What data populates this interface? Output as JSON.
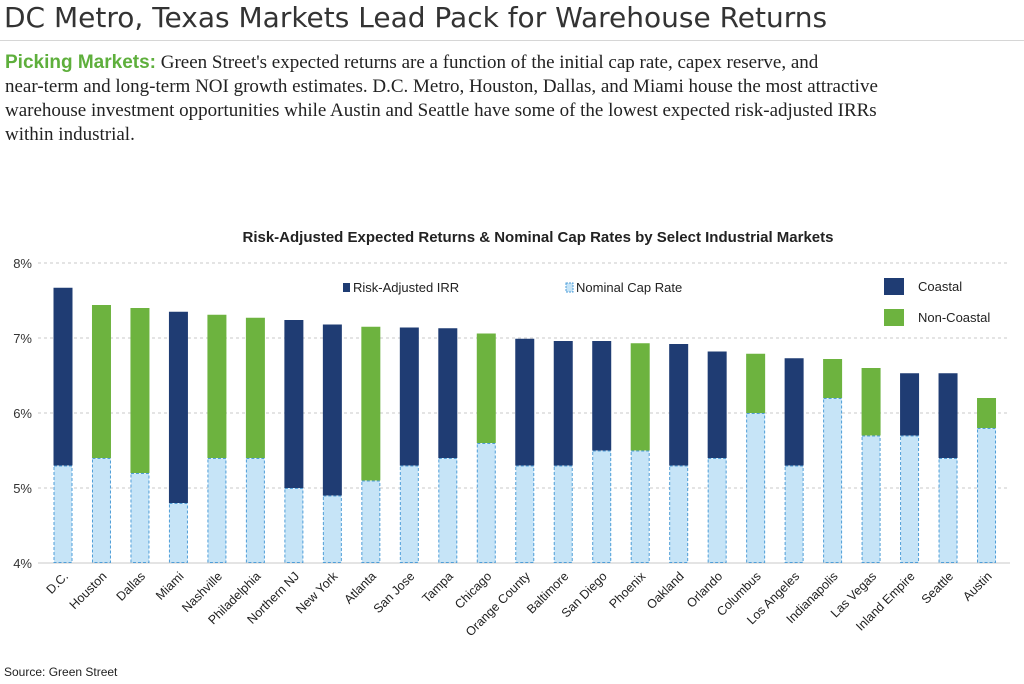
{
  "page": {
    "headline": "DC Metro, Texas Markets Lead Pack for Warehouse Returns",
    "intro_lead": "Picking Markets:",
    "intro_lines": [
      " Green Street's expected returns are a function of the initial cap rate, capex reserve, and",
      "near-term and long-term NOI growth estimates. D.C. Metro, Houston, Dallas, and Miami house the most attractive",
      "warehouse investment opportunities while Austin and Seattle have some of the lowest expected risk-adjusted IRRs",
      "within industrial."
    ],
    "source": "Source: Green Street"
  },
  "chart_data": {
    "type": "bar",
    "title": "Risk-Adjusted Expected Returns & Nominal Cap Rates by Select Industrial Markets",
    "xlabel": "",
    "ylabel": "",
    "ylim": [
      4,
      8
    ],
    "yticks": [
      "4%",
      "5%",
      "6%",
      "7%",
      "8%"
    ],
    "grid": "horizontal, dashed",
    "categories": [
      "D.C.",
      "Houston",
      "Dallas",
      "Miami",
      "Nashville",
      "Philadelphia",
      "Northern NJ",
      "New York",
      "Atlanta",
      "San Jose",
      "Tampa",
      "Chicago",
      "Orange County",
      "Baltimore",
      "San Diego",
      "Phoenix",
      "Oakland",
      "Orlando",
      "Columbus",
      "Los Angeles",
      "Indianapolis",
      "Las Vegas",
      "Inland Empire",
      "Seattle",
      "Austin"
    ],
    "region": [
      "coastal",
      "non-coastal",
      "non-coastal",
      "coastal",
      "non-coastal",
      "non-coastal",
      "coastal",
      "coastal",
      "non-coastal",
      "coastal",
      "coastal",
      "non-coastal",
      "coastal",
      "coastal",
      "coastal",
      "non-coastal",
      "coastal",
      "coastal",
      "non-coastal",
      "coastal",
      "non-coastal",
      "non-coastal",
      "coastal",
      "coastal",
      "non-coastal"
    ],
    "series": [
      {
        "name": "Risk-Adjusted IRR",
        "values": [
          7.67,
          7.44,
          7.4,
          7.35,
          7.31,
          7.27,
          7.24,
          7.18,
          7.15,
          7.14,
          7.13,
          7.06,
          6.99,
          6.96,
          6.96,
          6.93,
          6.92,
          6.82,
          6.79,
          6.73,
          6.72,
          6.6,
          6.53,
          6.53,
          6.2
        ]
      },
      {
        "name": "Nominal Cap Rate",
        "values": [
          5.3,
          5.4,
          5.2,
          4.8,
          5.4,
          5.4,
          5.0,
          4.9,
          5.1,
          5.3,
          5.4,
          5.6,
          5.3,
          5.3,
          5.5,
          5.5,
          5.3,
          5.4,
          6.0,
          5.3,
          6.2,
          5.7,
          5.7,
          5.4,
          5.8
        ]
      }
    ],
    "legend": {
      "series_position": "top",
      "region_position": "top-right",
      "region_labels": {
        "coastal": "Coastal",
        "non-coastal": "Non-Coastal"
      }
    },
    "colors": {
      "coastal": "#1f3c73",
      "non_coastal": "#6db33f",
      "cap_rate": "#c6e4f7",
      "cap_rate_border": "#4f9ed8"
    }
  }
}
